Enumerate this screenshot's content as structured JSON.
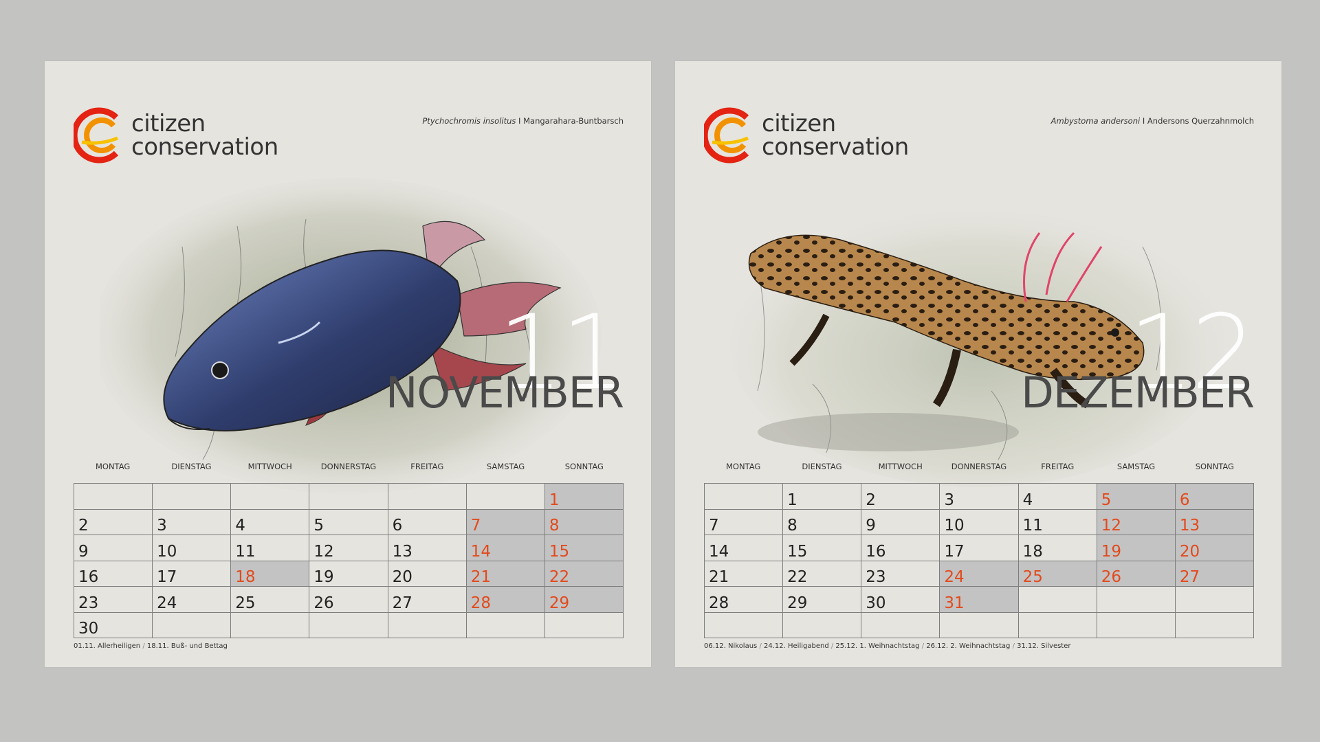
{
  "pages": [
    {
      "logo": {
        "line1": "citizen",
        "line2": "conservation"
      },
      "species": {
        "latin": "Ptychochromis insolitus",
        "separator": "I",
        "common": "Mangarahara-Buntbarsch"
      },
      "month_number": "11",
      "month_name": "NOVEMBER",
      "weekdays": [
        "MONTAG",
        "DIENSTAG",
        "MITTWOCH",
        "DONNERSTAG",
        "FREITAG",
        "SAMSTAG",
        "SONNTAG"
      ],
      "weeks": [
        [
          {
            "d": ""
          },
          {
            "d": ""
          },
          {
            "d": ""
          },
          {
            "d": ""
          },
          {
            "d": ""
          },
          {
            "d": ""
          },
          {
            "d": "1",
            "red": true,
            "grey": true
          }
        ],
        [
          {
            "d": "2"
          },
          {
            "d": "3"
          },
          {
            "d": "4"
          },
          {
            "d": "5"
          },
          {
            "d": "6"
          },
          {
            "d": "7",
            "red": true,
            "grey": true
          },
          {
            "d": "8",
            "red": true,
            "grey": true
          }
        ],
        [
          {
            "d": "9"
          },
          {
            "d": "10"
          },
          {
            "d": "11"
          },
          {
            "d": "12"
          },
          {
            "d": "13"
          },
          {
            "d": "14",
            "red": true,
            "grey": true
          },
          {
            "d": "15",
            "red": true,
            "grey": true
          }
        ],
        [
          {
            "d": "16"
          },
          {
            "d": "17"
          },
          {
            "d": "18",
            "red": true,
            "grey": true
          },
          {
            "d": "19"
          },
          {
            "d": "20"
          },
          {
            "d": "21",
            "red": true,
            "grey": true
          },
          {
            "d": "22",
            "red": true,
            "grey": true
          }
        ],
        [
          {
            "d": "23"
          },
          {
            "d": "24"
          },
          {
            "d": "25"
          },
          {
            "d": "26"
          },
          {
            "d": "27"
          },
          {
            "d": "28",
            "red": true,
            "grey": true
          },
          {
            "d": "29",
            "red": true,
            "grey": true
          }
        ],
        [
          {
            "d": "30"
          },
          {
            "d": ""
          },
          {
            "d": ""
          },
          {
            "d": ""
          },
          {
            "d": ""
          },
          {
            "d": ""
          },
          {
            "d": ""
          }
        ]
      ],
      "holidays": [
        {
          "date": "01.11.",
          "name": "Allerheiligen"
        },
        {
          "date": "18.11.",
          "name": "Buß- und Bettag"
        }
      ],
      "illustration": "fish"
    },
    {
      "logo": {
        "line1": "citizen",
        "line2": "conservation"
      },
      "species": {
        "latin": "Ambystoma andersoni",
        "separator": "I",
        "common": "Andersons Querzahnmolch"
      },
      "month_number": "12",
      "month_name": "DEZEMBER",
      "weekdays": [
        "MONTAG",
        "DIENSTAG",
        "MITTWOCH",
        "DONNERSTAG",
        "FREITAG",
        "SAMSTAG",
        "SONNTAG"
      ],
      "weeks": [
        [
          {
            "d": ""
          },
          {
            "d": "1"
          },
          {
            "d": "2"
          },
          {
            "d": "3"
          },
          {
            "d": "4"
          },
          {
            "d": "5",
            "red": true,
            "grey": true
          },
          {
            "d": "6",
            "red": true,
            "grey": true
          }
        ],
        [
          {
            "d": "7"
          },
          {
            "d": "8"
          },
          {
            "d": "9"
          },
          {
            "d": "10"
          },
          {
            "d": "11"
          },
          {
            "d": "12",
            "red": true,
            "grey": true
          },
          {
            "d": "13",
            "red": true,
            "grey": true
          }
        ],
        [
          {
            "d": "14"
          },
          {
            "d": "15"
          },
          {
            "d": "16"
          },
          {
            "d": "17"
          },
          {
            "d": "18"
          },
          {
            "d": "19",
            "red": true,
            "grey": true
          },
          {
            "d": "20",
            "red": true,
            "grey": true
          }
        ],
        [
          {
            "d": "21"
          },
          {
            "d": "22"
          },
          {
            "d": "23"
          },
          {
            "d": "24",
            "red": true,
            "grey": true
          },
          {
            "d": "25",
            "red": true,
            "grey": true
          },
          {
            "d": "26",
            "red": true,
            "grey": true
          },
          {
            "d": "27",
            "red": true,
            "grey": true
          }
        ],
        [
          {
            "d": "28"
          },
          {
            "d": "29"
          },
          {
            "d": "30"
          },
          {
            "d": "31",
            "red": true,
            "grey": true
          },
          {
            "d": ""
          },
          {
            "d": ""
          },
          {
            "d": ""
          }
        ],
        [
          {
            "d": ""
          },
          {
            "d": ""
          },
          {
            "d": ""
          },
          {
            "d": ""
          },
          {
            "d": ""
          },
          {
            "d": ""
          },
          {
            "d": ""
          }
        ]
      ],
      "holidays": [
        {
          "date": "06.12.",
          "name": "Nikolaus"
        },
        {
          "date": "24.12.",
          "name": "Heiligabend"
        },
        {
          "date": "25.12.",
          "name": "1. Weihnachtstag"
        },
        {
          "date": "26.12.",
          "name": "2. Weihnachtstag"
        },
        {
          "date": "31.12.",
          "name": "Silvester"
        }
      ],
      "illustration": "axolotl"
    }
  ],
  "colors": {
    "holiday_red": "#e24a1d",
    "weekend_grey": "#c3c3c3",
    "logo_orange": "#f29200",
    "logo_red": "#e42313"
  }
}
